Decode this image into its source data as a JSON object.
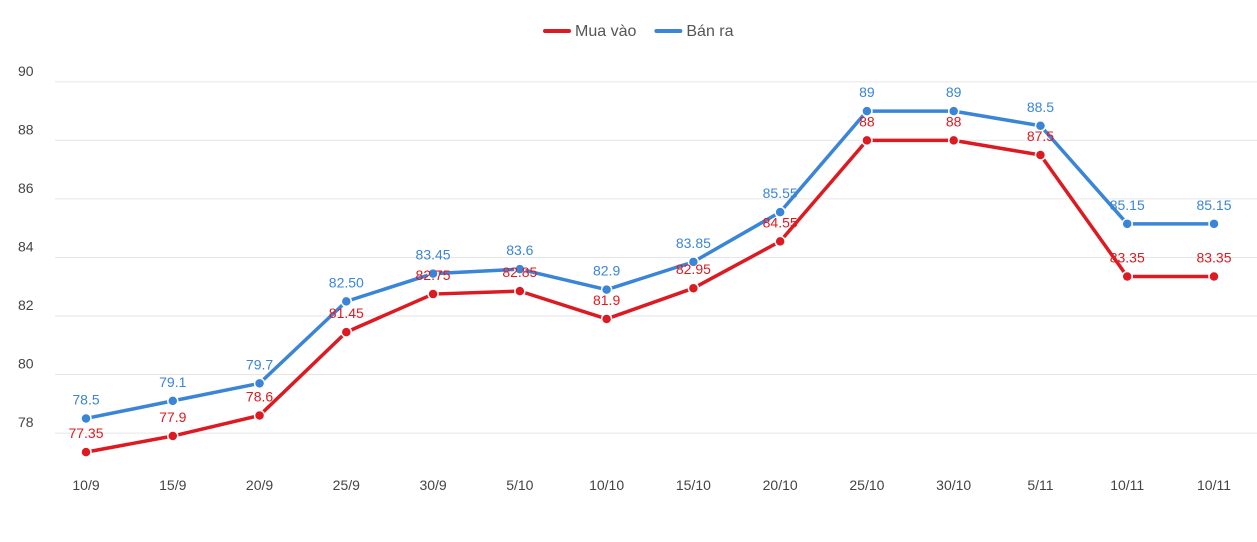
{
  "chart_data": {
    "type": "line",
    "categories": [
      "10/9",
      "15/9",
      "20/9",
      "25/9",
      "30/9",
      "5/10",
      "10/10",
      "15/10",
      "20/10",
      "25/10",
      "30/10",
      "5/11",
      "10/11",
      "10/11"
    ],
    "ylim": [
      76.5,
      90.2
    ],
    "yticks": [
      78,
      80,
      82,
      84,
      86,
      88,
      90
    ],
    "grid": true,
    "legend_position": "top-center",
    "series": [
      {
        "name": "Mua vào",
        "color": "#dd1a21",
        "values": [
          77.35,
          77.9,
          78.6,
          81.45,
          82.75,
          82.85,
          81.9,
          82.95,
          84.55,
          88,
          88,
          87.5,
          83.35,
          83.35
        ],
        "labels": [
          "77.35",
          "77.9",
          "78.6",
          "81.45",
          "82.75",
          "82.85",
          "81.9",
          "82.95",
          "84.55",
          "88",
          "88",
          "87.5",
          "83.35",
          "83.35"
        ]
      },
      {
        "name": "Bán ra",
        "color": "#3a85d8",
        "values": [
          78.5,
          79.1,
          79.7,
          82.5,
          83.45,
          83.6,
          82.9,
          83.85,
          85.55,
          89,
          89,
          88.5,
          85.15,
          85.15
        ],
        "labels": [
          "78.5",
          "79.1",
          "79.7",
          "82.50",
          "83.45",
          "83.6",
          "82.9",
          "83.85",
          "85.55",
          "89",
          "89",
          "88.5",
          "85.15",
          "85.15"
        ]
      }
    ]
  }
}
